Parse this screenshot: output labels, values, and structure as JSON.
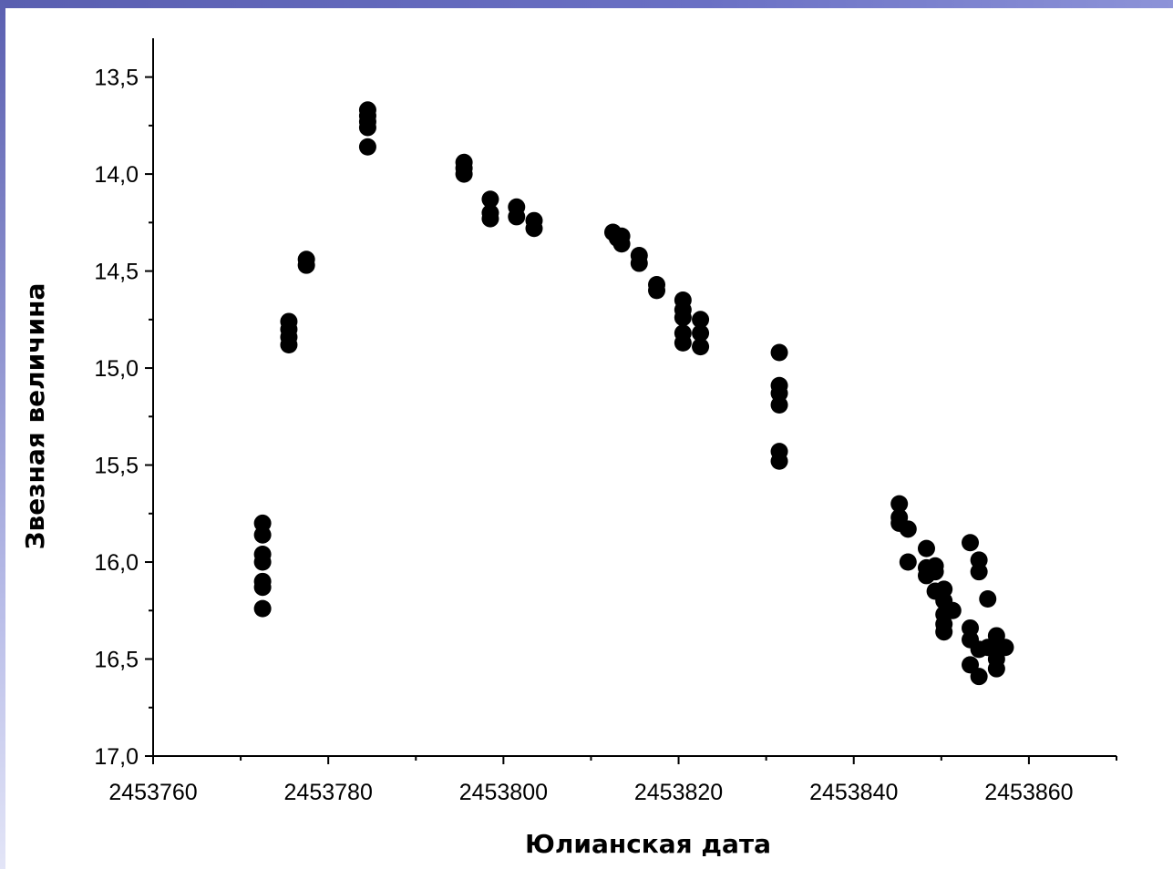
{
  "chart_data": {
    "type": "scatter",
    "xlabel": "Юлианская дата",
    "ylabel": "Звезная величина",
    "xlim": [
      2453760,
      2453870
    ],
    "ylim": [
      17.0,
      13.3
    ],
    "y_inverted": true,
    "x_ticks": [
      2453760,
      2453780,
      2453800,
      2453820,
      2453840,
      2453860
    ],
    "x_minor_ticks": [
      2453770,
      2453790,
      2453810,
      2453830,
      2453850,
      2453870
    ],
    "y_ticks": [
      13.5,
      14.0,
      14.5,
      15.0,
      15.5,
      16.0,
      16.5,
      17.0
    ],
    "y_tick_labels": [
      "13,5",
      "14,0",
      "14,5",
      "15,0",
      "15,5",
      "16,0",
      "16,5",
      "17,0"
    ],
    "marker_color": "#000000",
    "grid": false,
    "points": [
      {
        "x": 2453772.5,
        "y": 15.8
      },
      {
        "x": 2453772.5,
        "y": 15.86
      },
      {
        "x": 2453772.5,
        "y": 15.96
      },
      {
        "x": 2453772.5,
        "y": 16.0
      },
      {
        "x": 2453772.5,
        "y": 16.1
      },
      {
        "x": 2453772.5,
        "y": 16.13
      },
      {
        "x": 2453772.5,
        "y": 16.24
      },
      {
        "x": 2453775.5,
        "y": 14.76
      },
      {
        "x": 2453775.5,
        "y": 14.8
      },
      {
        "x": 2453775.5,
        "y": 14.84
      },
      {
        "x": 2453775.5,
        "y": 14.88
      },
      {
        "x": 2453777.5,
        "y": 14.44
      },
      {
        "x": 2453777.5,
        "y": 14.47
      },
      {
        "x": 2453784.5,
        "y": 13.67
      },
      {
        "x": 2453784.5,
        "y": 13.7
      },
      {
        "x": 2453784.5,
        "y": 13.73
      },
      {
        "x": 2453784.5,
        "y": 13.76
      },
      {
        "x": 2453784.5,
        "y": 13.86
      },
      {
        "x": 2453795.5,
        "y": 13.94
      },
      {
        "x": 2453795.5,
        "y": 13.97
      },
      {
        "x": 2453795.5,
        "y": 14.0
      },
      {
        "x": 2453798.5,
        "y": 14.13
      },
      {
        "x": 2453798.5,
        "y": 14.2
      },
      {
        "x": 2453798.5,
        "y": 14.23
      },
      {
        "x": 2453801.5,
        "y": 14.17
      },
      {
        "x": 2453801.5,
        "y": 14.22
      },
      {
        "x": 2453803.5,
        "y": 14.24
      },
      {
        "x": 2453803.5,
        "y": 14.28
      },
      {
        "x": 2453812.5,
        "y": 14.3
      },
      {
        "x": 2453813.0,
        "y": 14.33
      },
      {
        "x": 2453813.5,
        "y": 14.32
      },
      {
        "x": 2453813.5,
        "y": 14.36
      },
      {
        "x": 2453815.5,
        "y": 14.42
      },
      {
        "x": 2453815.5,
        "y": 14.46
      },
      {
        "x": 2453817.5,
        "y": 14.57
      },
      {
        "x": 2453817.5,
        "y": 14.6
      },
      {
        "x": 2453820.5,
        "y": 14.65
      },
      {
        "x": 2453820.5,
        "y": 14.7
      },
      {
        "x": 2453820.5,
        "y": 14.74
      },
      {
        "x": 2453820.5,
        "y": 14.82
      },
      {
        "x": 2453820.5,
        "y": 14.87
      },
      {
        "x": 2453822.5,
        "y": 14.75
      },
      {
        "x": 2453822.5,
        "y": 14.82
      },
      {
        "x": 2453822.5,
        "y": 14.89
      },
      {
        "x": 2453831.5,
        "y": 14.92
      },
      {
        "x": 2453831.5,
        "y": 15.09
      },
      {
        "x": 2453831.5,
        "y": 15.13
      },
      {
        "x": 2453831.5,
        "y": 15.19
      },
      {
        "x": 2453831.5,
        "y": 15.43
      },
      {
        "x": 2453831.5,
        "y": 15.48
      },
      {
        "x": 2453845.2,
        "y": 15.7
      },
      {
        "x": 2453845.2,
        "y": 15.77
      },
      {
        "x": 2453845.2,
        "y": 15.8
      },
      {
        "x": 2453846.2,
        "y": 15.83
      },
      {
        "x": 2453846.2,
        "y": 16.0
      },
      {
        "x": 2453848.3,
        "y": 15.93
      },
      {
        "x": 2453848.3,
        "y": 16.03
      },
      {
        "x": 2453848.3,
        "y": 16.07
      },
      {
        "x": 2453849.3,
        "y": 16.02
      },
      {
        "x": 2453849.3,
        "y": 16.05
      },
      {
        "x": 2453849.3,
        "y": 16.15
      },
      {
        "x": 2453850.3,
        "y": 16.14
      },
      {
        "x": 2453850.3,
        "y": 16.2
      },
      {
        "x": 2453850.3,
        "y": 16.27
      },
      {
        "x": 2453850.3,
        "y": 16.32
      },
      {
        "x": 2453850.3,
        "y": 16.36
      },
      {
        "x": 2453851.3,
        "y": 16.25
      },
      {
        "x": 2453853.3,
        "y": 15.9
      },
      {
        "x": 2453853.3,
        "y": 16.34
      },
      {
        "x": 2453853.3,
        "y": 16.4
      },
      {
        "x": 2453853.3,
        "y": 16.53
      },
      {
        "x": 2453854.3,
        "y": 15.99
      },
      {
        "x": 2453854.3,
        "y": 16.05
      },
      {
        "x": 2453854.3,
        "y": 16.45
      },
      {
        "x": 2453854.3,
        "y": 16.59
      },
      {
        "x": 2453855.3,
        "y": 16.19
      },
      {
        "x": 2453855.3,
        "y": 16.44
      },
      {
        "x": 2453856.3,
        "y": 16.38
      },
      {
        "x": 2453856.3,
        "y": 16.46
      },
      {
        "x": 2453856.3,
        "y": 16.5
      },
      {
        "x": 2453856.3,
        "y": 16.55
      },
      {
        "x": 2453857.3,
        "y": 16.44
      }
    ]
  }
}
